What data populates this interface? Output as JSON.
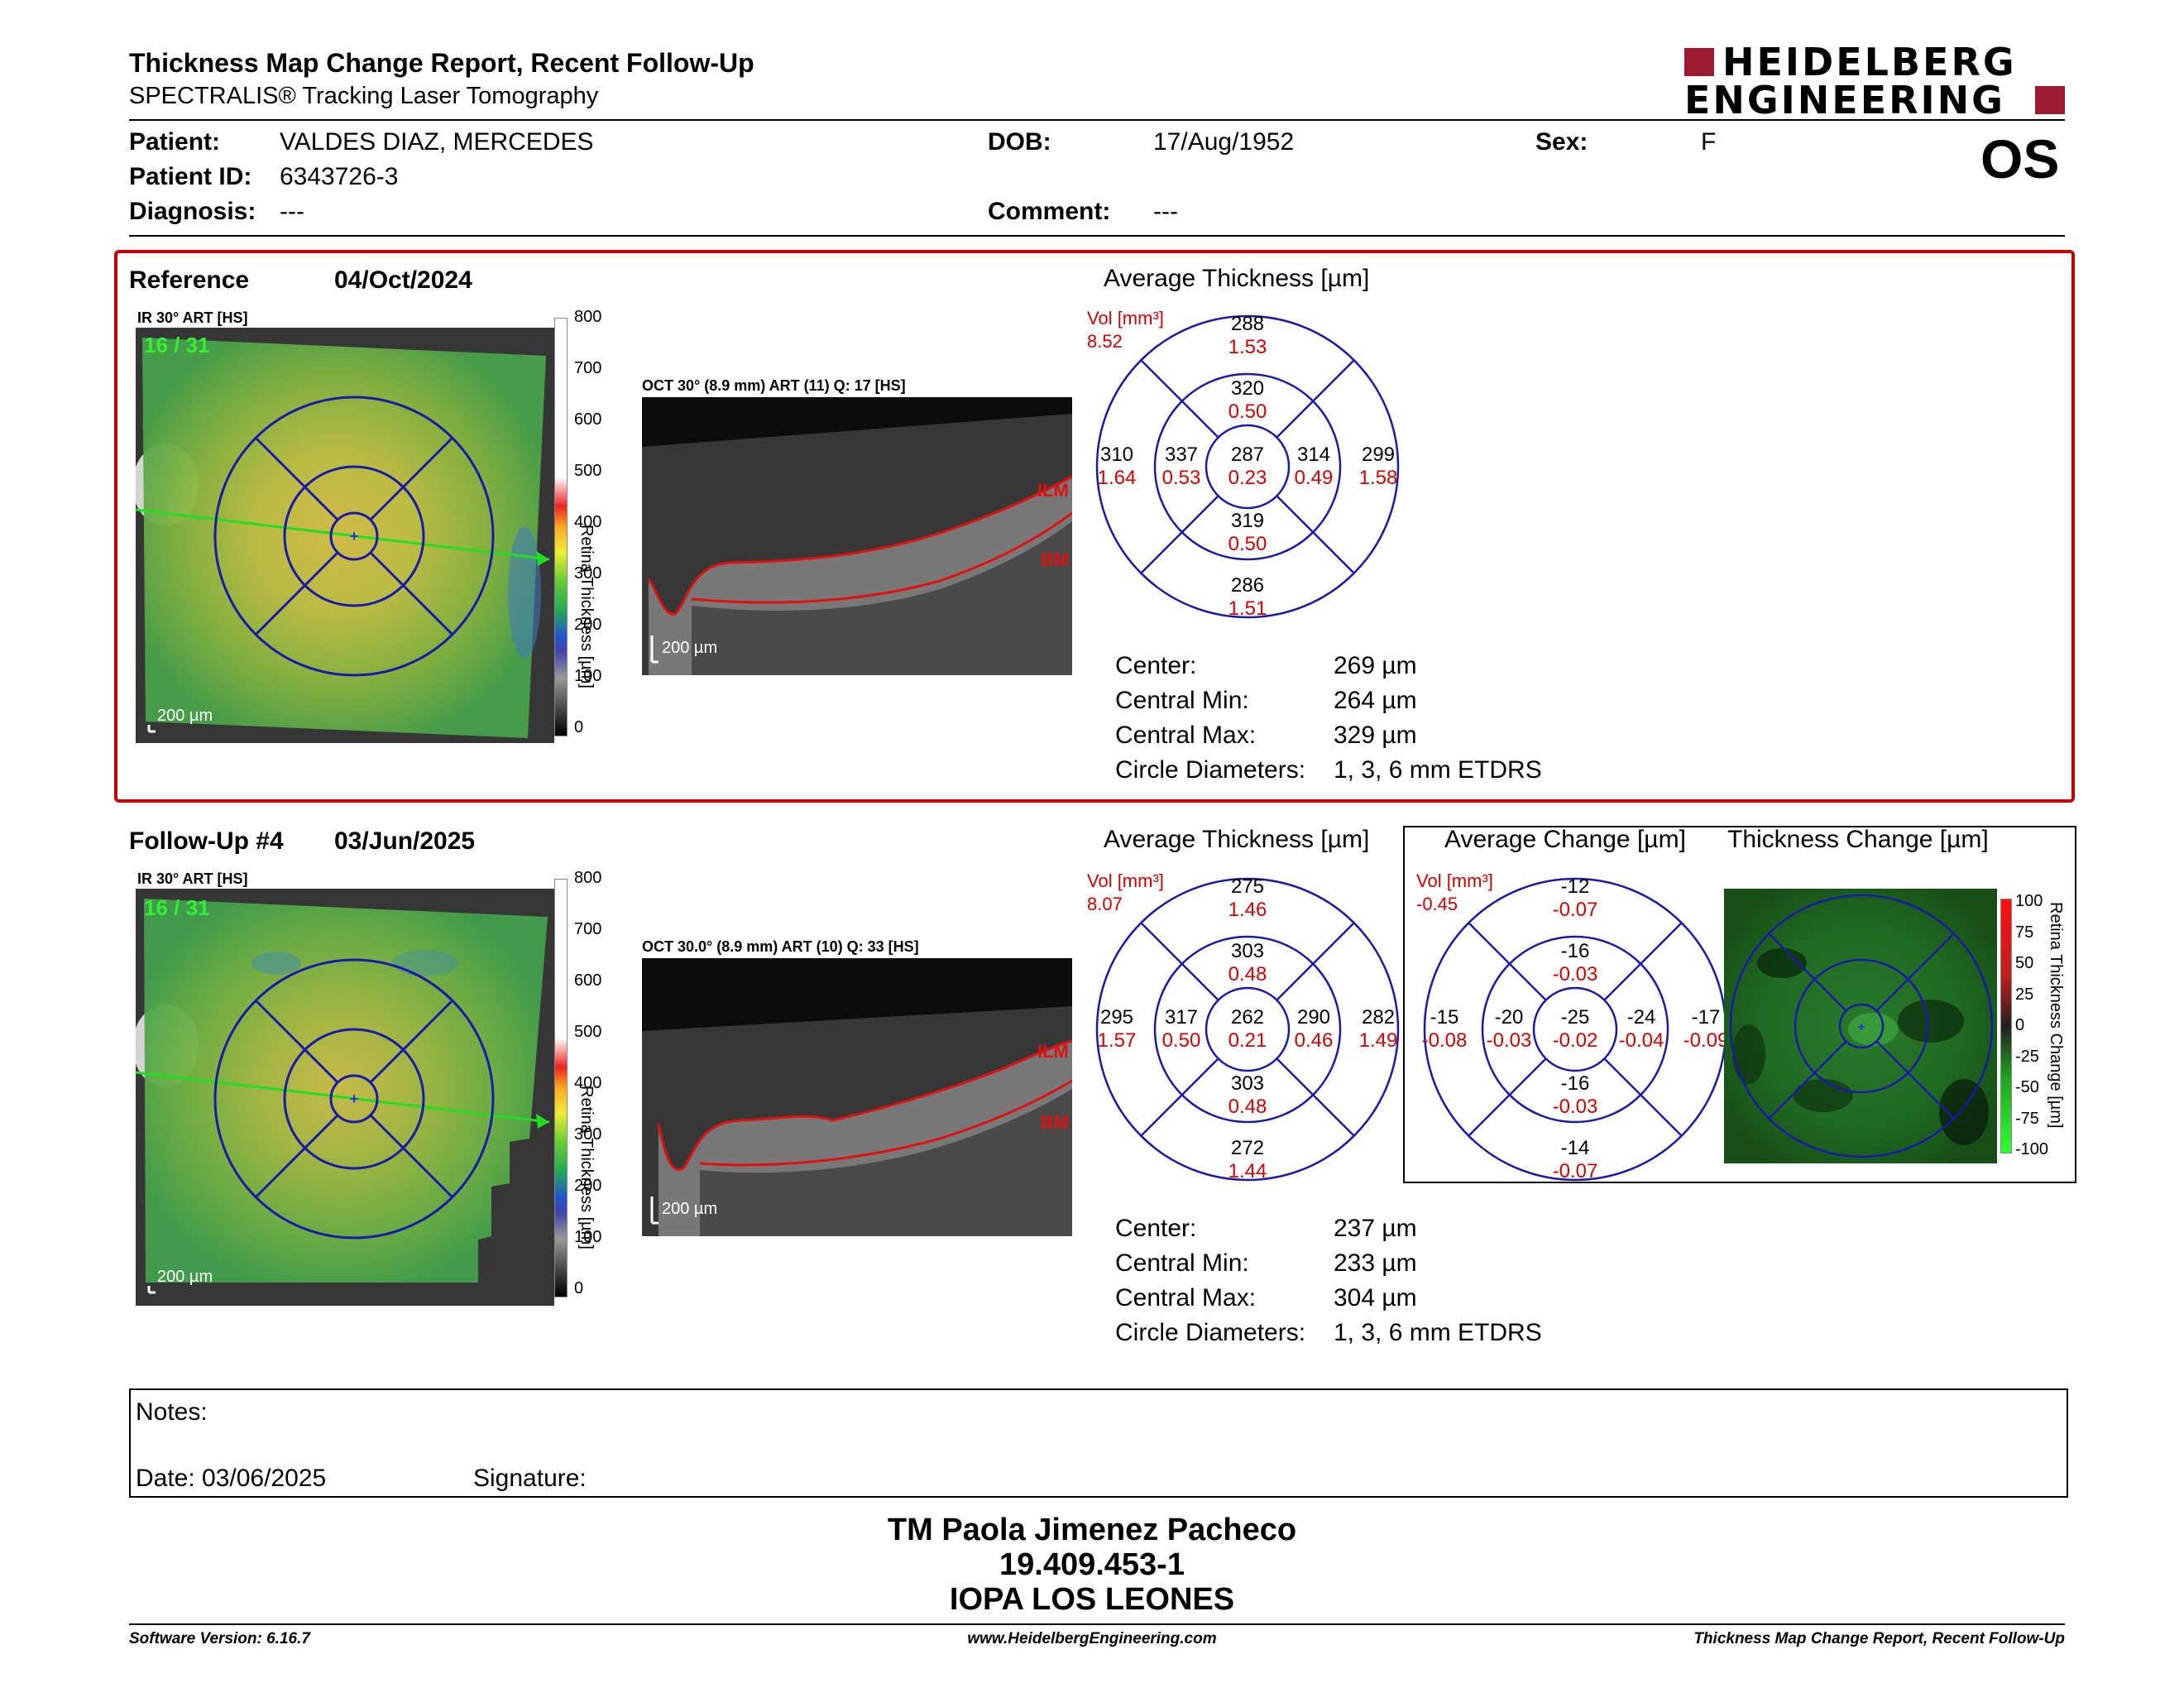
{
  "header": {
    "title": "Thickness Map Change Report, Recent Follow-Up",
    "subtitle": "SPECTRALIS® Tracking Laser Tomography",
    "logo_line1": "HEIDELBERG",
    "logo_line2": "ENGINEERING",
    "eye": "OS"
  },
  "patient": {
    "name_label": "Patient:",
    "name": "VALDES DIAZ, MERCEDES",
    "id_label": "Patient ID:",
    "id": "6343726-3",
    "diagnosis_label": "Diagnosis:",
    "diagnosis": "---",
    "dob_label": "DOB:",
    "dob": "17/Aug/1952",
    "comment_label": "Comment:",
    "comment": "---",
    "sex_label": "Sex:",
    "sex": "F"
  },
  "reference": {
    "label": "Reference",
    "date": "04/Oct/2024",
    "ir_label": "IR 30° ART [HS]",
    "frame_counter": "16 / 31",
    "scale_bar": "200 µm",
    "colorbar_ticks": [
      "800",
      "700",
      "600",
      "500",
      "400",
      "300",
      "200",
      "100",
      "0"
    ],
    "colorbar_title": "Retina Thickness [µm]",
    "oct_label": "OCT 30° (8.9 mm) ART (11) Q: 17 [HS]",
    "oct_scale": "200 µm",
    "ilm": "ILM",
    "bm": "BM",
    "avg_title": "Average Thickness [µm]",
    "vol_label": "Vol [mm³]",
    "vol_total": "8.52",
    "grid": {
      "center": {
        "t": "287",
        "v": "0.23"
      },
      "inner_sup": {
        "t": "320",
        "v": "0.50"
      },
      "inner_inf": {
        "t": "319",
        "v": "0.50"
      },
      "inner_nas": {
        "t": "337",
        "v": "0.53"
      },
      "inner_tem": {
        "t": "314",
        "v": "0.49"
      },
      "outer_sup": {
        "t": "288",
        "v": "1.53"
      },
      "outer_inf": {
        "t": "286",
        "v": "1.51"
      },
      "outer_nas": {
        "t": "310",
        "v": "1.64"
      },
      "outer_tem": {
        "t": "299",
        "v": "1.58"
      }
    },
    "stats": [
      {
        "label": "Center:",
        "value": "269 µm"
      },
      {
        "label": "Central Min:",
        "value": "264 µm"
      },
      {
        "label": "Central Max:",
        "value": "329 µm"
      },
      {
        "label": "Circle Diameters:",
        "value": "1, 3, 6 mm ETDRS"
      }
    ]
  },
  "followup": {
    "label": "Follow-Up #4",
    "date": "03/Jun/2025",
    "ir_label": "IR 30° ART [HS]",
    "frame_counter": "16 / 31",
    "scale_bar": "200 µm",
    "colorbar_ticks": [
      "800",
      "700",
      "600",
      "500",
      "400",
      "300",
      "200",
      "100",
      "0"
    ],
    "colorbar_title": "Retina Thickness [µm]",
    "oct_label": "OCT 30.0° (8.9 mm) ART (10) Q: 33 [HS]",
    "oct_scale": "200 µm",
    "ilm": "ILM",
    "bm": "BM",
    "avg_title": "Average Thickness [µm]",
    "vol_label": "Vol [mm³]",
    "vol_total": "8.07",
    "grid": {
      "center": {
        "t": "262",
        "v": "0.21"
      },
      "inner_sup": {
        "t": "303",
        "v": "0.48"
      },
      "inner_inf": {
        "t": "303",
        "v": "0.48"
      },
      "inner_nas": {
        "t": "317",
        "v": "0.50"
      },
      "inner_tem": {
        "t": "290",
        "v": "0.46"
      },
      "outer_sup": {
        "t": "275",
        "v": "1.46"
      },
      "outer_inf": {
        "t": "272",
        "v": "1.44"
      },
      "outer_nas": {
        "t": "295",
        "v": "1.57"
      },
      "outer_tem": {
        "t": "282",
        "v": "1.49"
      }
    },
    "stats": [
      {
        "label": "Center:",
        "value": "237 µm"
      },
      {
        "label": "Central Min:",
        "value": "233 µm"
      },
      {
        "label": "Central Max:",
        "value": "304 µm"
      },
      {
        "label": "Circle Diameters:",
        "value": "1, 3, 6 mm ETDRS"
      }
    ]
  },
  "change": {
    "avg_title": "Average Change [µm]",
    "map_title": "Thickness Change [µm]",
    "vol_label": "Vol [mm³]",
    "vol_total": "-0.45",
    "grid": {
      "center": {
        "t": "-25",
        "v": "-0.02"
      },
      "inner_sup": {
        "t": "-16",
        "v": "-0.03"
      },
      "inner_inf": {
        "t": "-16",
        "v": "-0.03"
      },
      "inner_nas": {
        "t": "-20",
        "v": "-0.03"
      },
      "inner_tem": {
        "t": "-24",
        "v": "-0.04"
      },
      "outer_sup": {
        "t": "-12",
        "v": "-0.07"
      },
      "outer_inf": {
        "t": "-14",
        "v": "-0.07"
      },
      "outer_nas": {
        "t": "-15",
        "v": "-0.08"
      },
      "outer_tem": {
        "t": "-17",
        "v": "-0.09"
      }
    },
    "colorbar_ticks": [
      "100",
      "75",
      "50",
      "25",
      "0",
      "-25",
      "-50",
      "-75",
      "-100"
    ],
    "colorbar_title": "Retina Thickness Change [µm]"
  },
  "notes": {
    "label": "Notes:",
    "date_label": "Date: 03/06/2025",
    "signature_label": "Signature:"
  },
  "signature_block": {
    "name": "TM Paola Jimenez Pacheco",
    "rut": "19.409.453-1",
    "institution": "IOPA LOS LEONES"
  },
  "footer": {
    "software": "Software Version: 6.16.7",
    "website": "www.HeidelbergEngineering.com",
    "report": "Thickness Map Change Report, Recent Follow-Up"
  },
  "colors": {
    "frame_red": "#c00000",
    "grid_blue": "#1a1aa8",
    "value_red": "#d00000",
    "logo_maroon": "#9b1b30"
  }
}
